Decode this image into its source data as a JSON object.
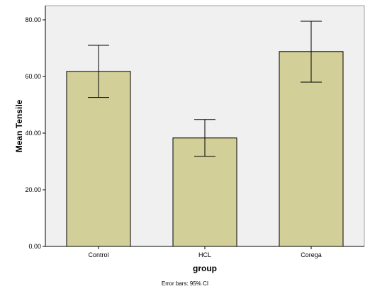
{
  "chart_data": {
    "type": "bar",
    "categories": [
      "Control",
      "HCL",
      "Corega"
    ],
    "values": [
      61.8,
      38.3,
      68.8
    ],
    "error_bars": {
      "lower": [
        52.6,
        31.8,
        58.0
      ],
      "upper": [
        71.0,
        44.8,
        79.5
      ]
    },
    "xlabel": "group",
    "ylabel": "Mean Tensile",
    "ylim": [
      0,
      85
    ],
    "yticks": [
      0,
      20,
      40,
      60,
      80
    ],
    "ytick_labels": [
      "0.00",
      "20.00",
      "40.00",
      "60.00",
      "80.00"
    ],
    "footnote": "Error bars: 95% CI",
    "grid": false,
    "colors": {
      "bar_fill": "#d3cf99",
      "bar_stroke": "#000000",
      "plot_background": "#f0f0f0",
      "plot_border": "#a0a0a0"
    }
  }
}
